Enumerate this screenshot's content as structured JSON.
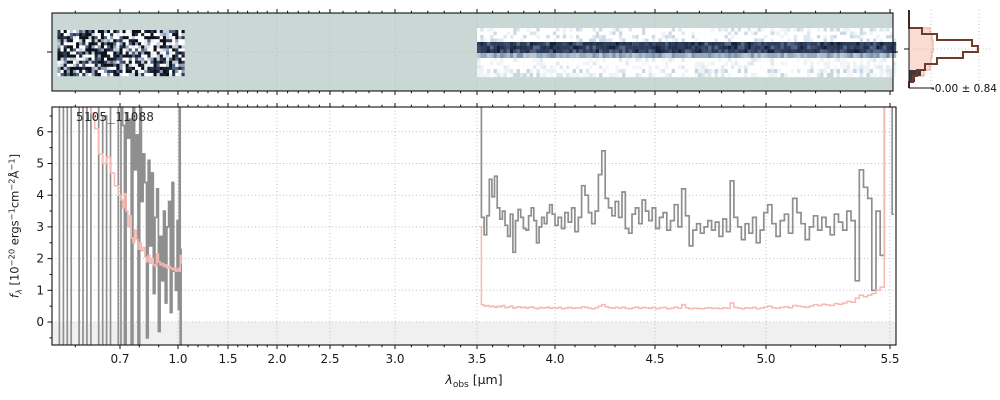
{
  "labels": {
    "object_id": "5105_11088",
    "hist_annotation": "-0.00 ± 0.84",
    "xlabel": {
      "symbol": "λ",
      "sub": "obs",
      "unit": " [μm]"
    },
    "ylabel_parts": [
      "f",
      "λ",
      " [10",
      "−20",
      " ergs",
      "−1",
      "cm",
      "−2",
      "Å",
      "−1",
      "]"
    ]
  },
  "colors": {
    "flux_line": "#8f8f8f",
    "error_line": "#f5b9b2",
    "spec2d_background": "#c9d8d5",
    "spec2d_trace_dark": "#2c3b58",
    "hist_line": "#6f3b2a",
    "hist_fill": "#fbdcd3",
    "hist_fill_edge": "#f0a294",
    "hist_secondary": "#3c3c3c",
    "grid": "#bfbfbf",
    "below_zero_band": "#f0f0f0",
    "axis": "#111111",
    "text": "#1a1a1a"
  },
  "chart_data": {
    "type": "line",
    "title": "5105_11088",
    "xlabel": "λ_obs [μm]",
    "ylabel": "f_λ [10⁻²⁰ ergs⁻¹cm⁻²Å⁻¹]",
    "xlim": [
      0.55,
      5.53
    ],
    "ylim": [
      -0.73,
      6.78
    ],
    "x_ticks": [
      0.7,
      1.0,
      1.5,
      2.0,
      2.5,
      3.0,
      3.5,
      4.0,
      4.5,
      5.0,
      5.5
    ],
    "x_tick_labels": [
      "0.7",
      "1.0",
      "1.5",
      "2.0",
      "2.5",
      "3.0",
      "3.5",
      "4.0",
      "4.5",
      "5.0",
      "5.5"
    ],
    "y_ticks": [
      0,
      1,
      2,
      3,
      4,
      5,
      6
    ],
    "y_tick_labels": [
      "0",
      "1",
      "2",
      "3",
      "4",
      "5",
      "6"
    ],
    "x_minor_step": 0.1,
    "y_minor_step": 0.5,
    "grid": "dotted",
    "legend": "none",
    "series": [
      {
        "name": "flux",
        "color": "#8f8f8f",
        "style": "steps-mid",
        "segments": [
          {
            "x_start": 0.56,
            "x_step": 0.0088,
            "y": [
              8.5,
              -2.0,
              9.0,
              -2.5,
              7.5,
              6.8,
              -2.2,
              8.2,
              -1.8,
              7.0,
              8.8,
              -2.6,
              6.5,
              -1.5,
              7.6,
              8.4,
              -2.0,
              7.9,
              6.2,
              -1.0,
              6.6,
              5.8,
              6.4,
              -1.4,
              7.1,
              4.8,
              5.9,
              -0.9,
              6.8,
              3.8,
              5.3,
              4.4,
              -0.5,
              5.1,
              2.4,
              4.7,
              0.9,
              3.3,
              4.2,
              -0.3,
              2.7,
              1.3,
              3.5,
              0.6,
              3.0,
              3.8,
              0.3,
              4.4,
              1.6,
              1.0,
              3.2,
              0.4,
              6.9,
              -0.8,
              2.3
            ]
          },
          {
            "x_start": 3.52,
            "x_step": 0.0168,
            "y": [
              7.6,
              3.3,
              2.75,
              3.35,
              4.5,
              3.95,
              4.6,
              3.6,
              3.25,
              3.5,
              3.05,
              2.7,
              3.4,
              2.2,
              3.2,
              3.55,
              3.3,
              2.95,
              2.9,
              3.35,
              3.6,
              3.2,
              2.5,
              3.0,
              3.3,
              3.1,
              3.45,
              3.7,
              3.4,
              3.05,
              3.3,
              2.95,
              3.45,
              3.15,
              3.6,
              2.85,
              3.3,
              4.3,
              4.0,
              3.45,
              3.1,
              3.5,
              4.65,
              5.4,
              3.9,
              3.6,
              3.35,
              3.8,
              3.3,
              4.1,
              2.95,
              2.8,
              3.4,
              3.6,
              3.1,
              3.85,
              3.5,
              3.2,
              3.6,
              2.95,
              3.3,
              3.45,
              2.9,
              3.2,
              3.7,
              3.0,
              4.2,
              3.35,
              2.4,
              2.9,
              3.1,
              2.8,
              3.0,
              3.2,
              2.9,
              3.15,
              2.7,
              3.25,
              2.85,
              4.45,
              3.3,
              3.0,
              2.6,
              3.1,
              2.8,
              3.3,
              2.5,
              2.9,
              3.45,
              3.7,
              3.1,
              2.7,
              3.2,
              3.4,
              2.8,
              3.9,
              3.45,
              3.1,
              2.6,
              3.0,
              3.35,
              2.9,
              3.3,
              3.0,
              2.75,
              3.4,
              3.15,
              2.9,
              3.5,
              3.2,
              1.3,
              4.8,
              4.25,
              3.9,
              1.0,
              3.5,
              2.1,
              7.8,
              7.8,
              3.4
            ]
          }
        ]
      },
      {
        "name": "uncertainty",
        "color": "#f5b9b2",
        "style": "steps-mid",
        "segments": [
          {
            "x_start": 0.56,
            "x_step": 0.0088,
            "y": [
              12,
              11.5,
              11,
              10.5,
              10,
              9.5,
              9,
              8.3,
              7.4,
              6.6,
              6.1,
              5.3,
              5.0,
              5.2,
              4.7,
              4.3,
              4.0,
              3.85,
              3.6,
              4.05,
              3.5,
              3.0,
              3.35,
              2.65,
              2.5,
              2.9,
              2.6,
              2.3,
              2.5,
              2.25,
              2.35,
              2.05,
              1.9,
              2.1,
              1.85,
              2.0,
              1.8,
              1.75,
              2.15,
              1.9,
              1.8,
              1.85,
              1.75,
              1.8,
              1.7,
              1.75,
              1.7,
              1.65,
              1.7,
              1.6,
              1.65,
              1.7,
              1.6,
              2.1,
              1.85
            ]
          },
          {
            "x_start": 3.52,
            "x_step": 0.0168,
            "y": [
              3.0,
              0.55,
              0.5,
              0.52,
              0.48,
              0.5,
              0.46,
              0.5,
              0.48,
              0.52,
              0.45,
              0.47,
              0.5,
              0.44,
              0.46,
              0.48,
              0.45,
              0.47,
              0.44,
              0.46,
              0.48,
              0.44,
              0.42,
              0.46,
              0.44,
              0.45,
              0.47,
              0.43,
              0.45,
              0.44,
              0.46,
              0.42,
              0.44,
              0.46,
              0.43,
              0.45,
              0.44,
              0.48,
              0.46,
              0.44,
              0.42,
              0.45,
              0.5,
              0.55,
              0.48,
              0.45,
              0.44,
              0.46,
              0.44,
              0.47,
              0.43,
              0.42,
              0.45,
              0.47,
              0.43,
              0.46,
              0.45,
              0.43,
              0.46,
              0.42,
              0.45,
              0.46,
              0.42,
              0.44,
              0.47,
              0.43,
              0.55,
              0.45,
              0.42,
              0.44,
              0.43,
              0.42,
              0.44,
              0.45,
              0.43,
              0.44,
              0.42,
              0.45,
              0.43,
              0.6,
              0.46,
              0.44,
              0.42,
              0.45,
              0.43,
              0.46,
              0.42,
              0.44,
              0.47,
              0.5,
              0.45,
              0.43,
              0.46,
              0.48,
              0.45,
              0.52,
              0.5,
              0.48,
              0.46,
              0.5,
              0.55,
              0.52,
              0.56,
              0.54,
              0.52,
              0.58,
              0.56,
              0.6,
              0.65,
              0.62,
              0.75,
              0.85,
              0.8,
              0.85,
              0.9,
              1.0,
              1.1,
              7.5,
              7.5,
              7.5
            ]
          }
        ]
      }
    ],
    "spec2d": {
      "background": "#c9d8d5",
      "segments": [
        {
          "x_range": [
            0.56,
            1.045
          ],
          "appearance": "noisy"
        },
        {
          "x_range": [
            3.5,
            5.52
          ],
          "appearance": "trace"
        }
      ]
    },
    "residual_histogram": {
      "annotation": "-0.00 ± 0.84",
      "orientation": "horizontal",
      "observed": [
        0,
        0,
        0,
        0.155,
        0.333,
        0.75,
        0.82,
        0.643,
        0.333,
        0.19,
        0.095,
        0.048,
        0
      ],
      "expected": [
        0,
        0,
        0,
        0.25,
        0.274,
        0.286,
        0.286,
        0.274,
        0.262,
        0.25,
        0.179,
        0,
        0
      ],
      "secondary": [
        0,
        0,
        0,
        0,
        0,
        0,
        0,
        0,
        0,
        0,
        0.143,
        0.071,
        0
      ]
    }
  }
}
